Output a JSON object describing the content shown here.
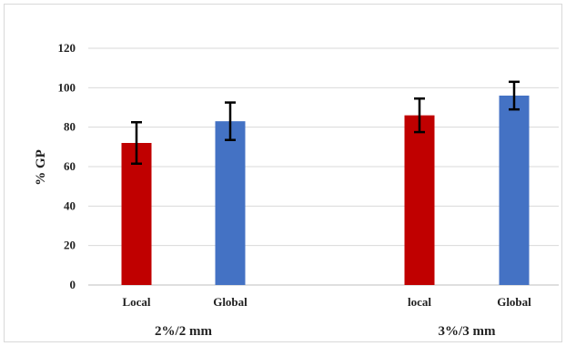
{
  "chart_data": {
    "type": "bar",
    "categories": [
      "Local",
      "Global",
      "local",
      "Global"
    ],
    "groups": [
      {
        "label": "2%/2 mm",
        "members": [
          0,
          1
        ]
      },
      {
        "label": "3%/3 mm",
        "members": [
          2,
          3
        ]
      }
    ],
    "values": [
      72,
      83,
      86,
      96
    ],
    "errors": [
      10.5,
      9.5,
      8.5,
      7
    ],
    "bar_colors": [
      "#c00000",
      "#4472c4",
      "#c00000",
      "#4472c4"
    ],
    "title": "",
    "xlabel": "",
    "ylabel": "% GP",
    "ylim": [
      0,
      120
    ],
    "yticks": [
      0,
      20,
      40,
      60,
      80,
      100,
      120
    ],
    "grid": true,
    "legend": "none"
  }
}
